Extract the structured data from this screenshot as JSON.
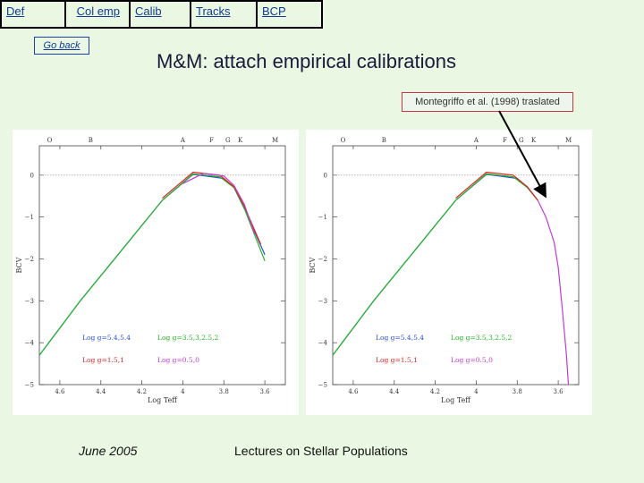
{
  "nav": {
    "def": "Def",
    "col_emp": "Col emp",
    "calib": "Calib",
    "tracks": "Tracks",
    "bcp": "BCP"
  },
  "go_back": "Go back",
  "title": "M&M: attach empirical calibrations",
  "annotation": "Montegriffo et al. (1998) traslated",
  "colors": {
    "background": "#e9f7e3",
    "link": "#123b8f",
    "logg_5_4": "#2a4fd6",
    "logg_3_2": "#22b522",
    "logg_1": "#dd2222",
    "logg_0": "#c23bd6",
    "montegriffo": "#cc33cc"
  },
  "chart_data": [
    {
      "type": "line",
      "title": "",
      "xlabel": "Log Teff",
      "ylabel": "BCV",
      "xlim": [
        4.7,
        3.5
      ],
      "ylim": [
        -5,
        0.7
      ],
      "x_ticks": [
        "4.6",
        "4.4",
        "4.2",
        "4",
        "3.8",
        "3.6"
      ],
      "y_ticks": [
        "0",
        "−1",
        "−2",
        "−3",
        "−4",
        "−5"
      ],
      "top_labels": [
        "O",
        "B",
        "A",
        "F",
        "G",
        "K",
        "M"
      ],
      "legend": [
        "Log g=5.4,5.4",
        "Log g=3.5,3,2.5,2",
        "Log g=1.5,1",
        "Log g=0.5,0"
      ],
      "series": [
        {
          "name": "Log g=5.4,5.4",
          "x": [
            4.7,
            4.5,
            4.3,
            4.1,
            3.95,
            3.8,
            3.75,
            3.7,
            3.6
          ],
          "y": [
            -4.3,
            -3.0,
            -1.8,
            -0.6,
            0.02,
            -0.08,
            -0.3,
            -0.8,
            -1.9
          ]
        },
        {
          "name": "Log g=3.5,3,2.5,2",
          "x": [
            4.7,
            4.5,
            4.3,
            4.1,
            3.95,
            3.82,
            3.75,
            3.7,
            3.6
          ],
          "y": [
            -4.3,
            -3.0,
            -1.8,
            -0.6,
            0.03,
            -0.04,
            -0.3,
            -0.8,
            -2.05
          ]
        },
        {
          "name": "Log g=1.5,1",
          "x": [
            4.1,
            3.95,
            3.82,
            3.75,
            3.7,
            3.62
          ],
          "y": [
            -0.55,
            0.07,
            0.0,
            -0.28,
            -0.75,
            -1.65
          ]
        },
        {
          "name": "Log g=0.5,0",
          "x": [
            4.0,
            3.9,
            3.8,
            3.75,
            3.7,
            3.65
          ],
          "y": [
            -0.2,
            0.04,
            -0.02,
            -0.25,
            -0.7,
            -1.4
          ]
        }
      ]
    },
    {
      "type": "line",
      "title": "",
      "xlabel": "Log Teff",
      "ylabel": "BCV",
      "xlim": [
        4.7,
        3.5
      ],
      "ylim": [
        -5,
        0.7
      ],
      "x_ticks": [
        "4.6",
        "4.4",
        "4.2",
        "4",
        "3.8",
        "3.6"
      ],
      "y_ticks": [
        "0",
        "−1",
        "−2",
        "−3",
        "−4",
        "−5"
      ],
      "top_labels": [
        "O",
        "B",
        "A",
        "F",
        "G",
        "K",
        "M"
      ],
      "legend": [
        "Log g=5.4,5.4",
        "Log g=3.5,3,2.5,2",
        "Log g=1.5,1",
        "Log g=0.5,0"
      ],
      "series": [
        {
          "name": "Log g=5.4,5.4",
          "x": [
            4.7,
            4.5,
            4.3,
            4.1,
            3.95,
            3.8,
            3.75,
            3.7
          ],
          "y": [
            -4.3,
            -3.0,
            -1.8,
            -0.6,
            0.02,
            -0.08,
            -0.3,
            -0.6
          ]
        },
        {
          "name": "Log g=3.5,3,2.5,2",
          "x": [
            4.7,
            4.5,
            4.3,
            4.1,
            3.95,
            3.82,
            3.75,
            3.7
          ],
          "y": [
            -4.3,
            -3.0,
            -1.8,
            -0.6,
            0.03,
            -0.04,
            -0.3,
            -0.6
          ]
        },
        {
          "name": "Log g=1.5,1",
          "x": [
            4.1,
            3.95,
            3.82,
            3.75,
            3.7
          ],
          "y": [
            -0.55,
            0.07,
            0.0,
            -0.28,
            -0.6
          ]
        },
        {
          "name": "Log g=0.5,0",
          "x": [
            3.7,
            3.66,
            3.62,
            3.6,
            3.58,
            3.56,
            3.55
          ],
          "y": [
            -0.6,
            -1.0,
            -1.6,
            -2.2,
            -3.2,
            -4.3,
            -5.0
          ]
        }
      ]
    }
  ],
  "footer": {
    "date": "June 2005",
    "lectures": "Lectures on Stellar Populations"
  }
}
